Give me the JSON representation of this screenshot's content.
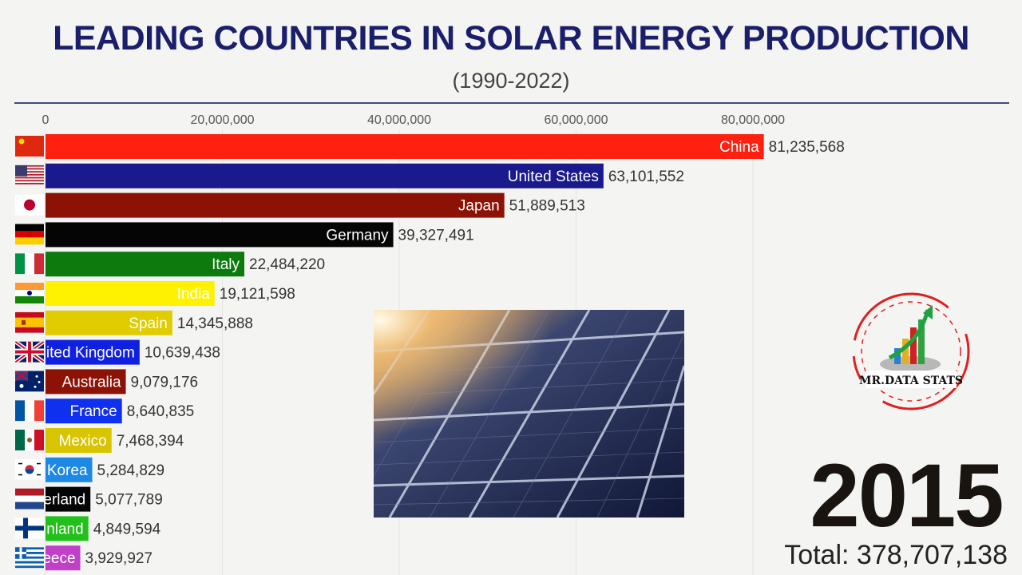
{
  "title": "LEADING COUNTRIES IN SOLAR ENERGY PRODUCTION",
  "subtitle": "(1990-2022)",
  "year": "2015",
  "total_label": "Total: 378,707,138",
  "logo_text": "MR.DATA STATS",
  "chart_data": {
    "type": "bar",
    "orientation": "horizontal",
    "xlim": [
      0,
      90000000
    ],
    "x_ticks": [
      0,
      20000000,
      40000000,
      60000000,
      80000000
    ],
    "x_tick_labels": [
      "0",
      "20,000,000",
      "40,000,000",
      "60,000,000",
      "80,000,000"
    ],
    "grid": true,
    "bars": [
      {
        "label": "China",
        "value": 81235568,
        "value_label": "81,235,568",
        "color": "#ff2010",
        "text_color": "#ffffff",
        "flag": "china-flag-icon"
      },
      {
        "label": "United States",
        "value": 63101552,
        "value_label": "63,101,552",
        "color": "#1a1a8c",
        "text_color": "#ffffff",
        "flag": "usa-flag-icon"
      },
      {
        "label": "Japan",
        "value": 51889513,
        "value_label": "51,889,513",
        "color": "#8c1206",
        "text_color": "#ffffff",
        "flag": "japan-flag-icon"
      },
      {
        "label": "Germany",
        "value": 39327491,
        "value_label": "39,327,491",
        "color": "#050505",
        "text_color": "#ffffff",
        "flag": "germany-flag-icon"
      },
      {
        "label": "Italy",
        "value": 22484220,
        "value_label": "22,484,220",
        "color": "#0c7a0c",
        "text_color": "#ffffff",
        "flag": "italy-flag-icon"
      },
      {
        "label": "India",
        "value": 19121598,
        "value_label": "19,121,598",
        "color": "#fff200",
        "text_color": "#ffffff",
        "flag": "india-flag-icon"
      },
      {
        "label": "Spain",
        "value": 14345888,
        "value_label": "14,345,888",
        "color": "#e0cc00",
        "text_color": "#ffffff",
        "flag": "spain-flag-icon"
      },
      {
        "label": "ited Kingdom",
        "value": 10639438,
        "value_label": "10,639,438",
        "color": "#1020e0",
        "text_color": "#ffffff",
        "flag": "uk-flag-icon"
      },
      {
        "label": "Australia",
        "value": 9079176,
        "value_label": "9,079,176",
        "color": "#8c1206",
        "text_color": "#ffffff",
        "flag": "australia-flag-icon"
      },
      {
        "label": "France",
        "value": 8640835,
        "value_label": "8,640,835",
        "color": "#1030f0",
        "text_color": "#ffffff",
        "flag": "france-flag-icon"
      },
      {
        "label": "Mexico",
        "value": 7468394,
        "value_label": "7,468,394",
        "color": "#d8c400",
        "text_color": "#ffffff",
        "flag": "mexico-flag-icon"
      },
      {
        "label": "Korea",
        "value": 5284829,
        "value_label": "5,284,829",
        "color": "#1e88e5",
        "text_color": "#ffffff",
        "flag": "korea-flag-icon"
      },
      {
        "label": "erland",
        "value": 5077789,
        "value_label": "5,077,789",
        "color": "#050505",
        "text_color": "#ffffff",
        "flag": "netherlands-flag-icon"
      },
      {
        "label": "nland",
        "value": 4849594,
        "value_label": "4,849,594",
        "color": "#22c01a",
        "text_color": "#ffffff",
        "flag": "finland-flag-icon"
      },
      {
        "label": "eece",
        "value": 3929927,
        "value_label": "3,929,927",
        "color": "#c040c8",
        "text_color": "#ffffff",
        "flag": "greece-flag-icon"
      }
    ]
  }
}
